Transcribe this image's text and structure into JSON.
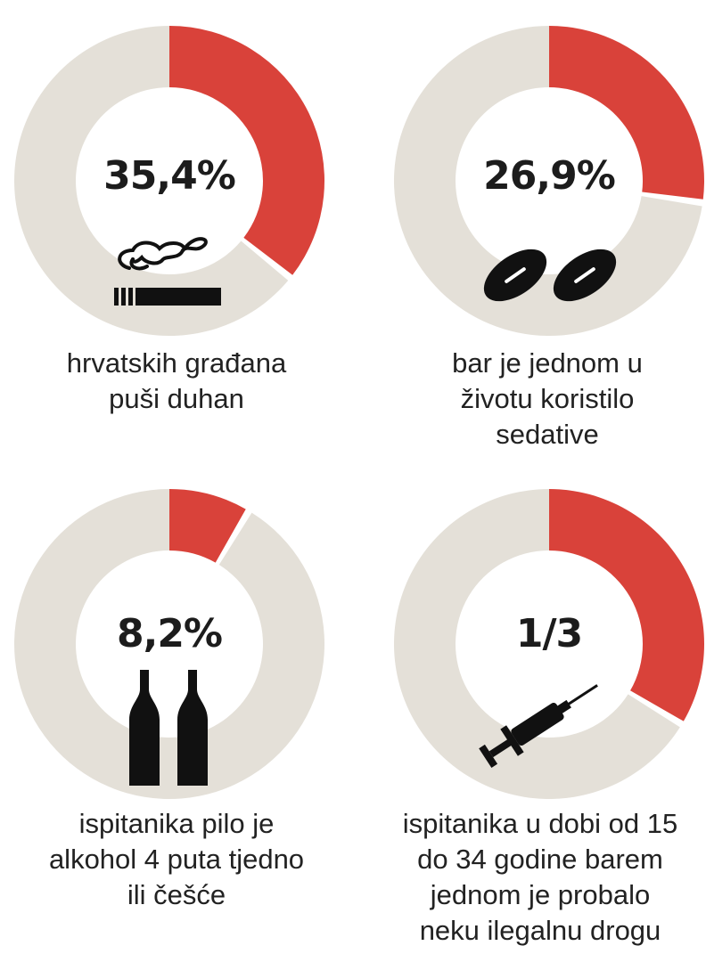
{
  "colors": {
    "highlight": "#d9423a",
    "rest": "#e4e0d8",
    "text": "#1c1c1c",
    "icon": "#111111"
  },
  "chart_data": [
    {
      "type": "donut",
      "value_label": "35,4%",
      "fraction": 0.354,
      "icon": "cigarette-icon",
      "caption": [
        "hrvatskih građana",
        "puši duhan"
      ]
    },
    {
      "type": "donut",
      "value_label": "26,9%",
      "fraction": 0.269,
      "icon": "pills-icon",
      "caption": [
        "bar je jednom u",
        "životu koristilo",
        "sedative"
      ]
    },
    {
      "type": "donut",
      "value_label": "8,2%",
      "fraction": 0.082,
      "icon": "beer-bottles-icon",
      "caption": [
        "ispitanika pilo je",
        "alkohol 4 puta tjedno",
        "ili češće"
      ]
    },
    {
      "type": "donut",
      "value_label": "1/3",
      "fraction": 0.333,
      "icon": "syringe-icon",
      "caption": [
        "ispitanika u dobi od 15",
        "do 34 godine barem",
        "jednom je probalo",
        "neku ilegalnu drogu"
      ]
    }
  ]
}
